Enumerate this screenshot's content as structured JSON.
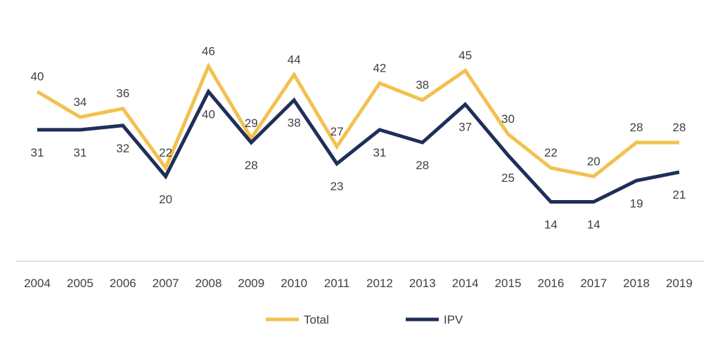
{
  "chart_data": {
    "type": "line",
    "x": [
      "2004",
      "2005",
      "2006",
      "2007",
      "2008",
      "2009",
      "2010",
      "2011",
      "2012",
      "2013",
      "2014",
      "2015",
      "2016",
      "2017",
      "2018",
      "2019"
    ],
    "series": [
      {
        "name": "Total",
        "color": "#F2C14E",
        "values": [
          40,
          34,
          36,
          22,
          46,
          29,
          44,
          27,
          42,
          38,
          45,
          30,
          22,
          20,
          28,
          28
        ],
        "label_pos": "above"
      },
      {
        "name": "IPV",
        "color": "#1F2E5A",
        "values": [
          31,
          31,
          32,
          20,
          40,
          28,
          38,
          23,
          31,
          28,
          37,
          25,
          14,
          14,
          19,
          21
        ],
        "label_pos": "below"
      }
    ],
    "ylim": [
      0,
      55
    ],
    "grid": false,
    "legend": "bottom-center",
    "axis_color": "#D9D9D9",
    "label_color": "#404040"
  }
}
